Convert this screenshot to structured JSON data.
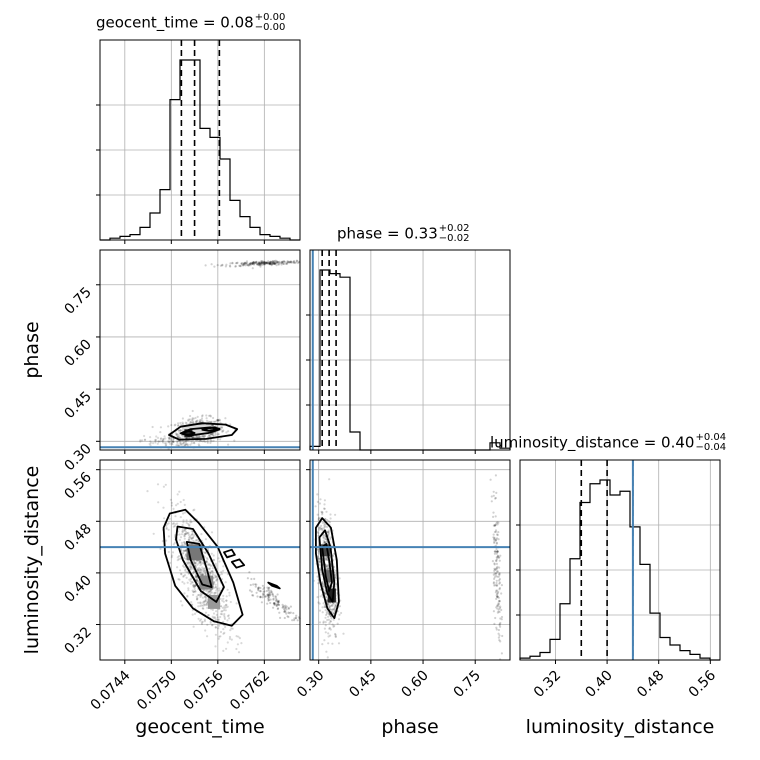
{
  "chart_data": {
    "type": "corner",
    "parameters": [
      "geocent_time",
      "phase",
      "luminosity_distance"
    ],
    "ranges": {
      "geocent_time": [
        0.07408,
        0.07666
      ],
      "phase": [
        0.275,
        0.85
      ],
      "luminosity_distance": [
        0.265,
        0.575
      ]
    },
    "ticks": {
      "geocent_time": [
        "0.0744",
        "0.0750",
        "0.0756",
        "0.0762"
      ],
      "phase": [
        "0.30",
        "0.45",
        "0.60",
        "0.75"
      ],
      "luminosity_distance": [
        "0.32",
        "0.40",
        "0.48",
        "0.56"
      ]
    },
    "titles": [
      {
        "label": "geocent_time = 0.08",
        "plus": "+0.00",
        "minus": "−0.00"
      },
      {
        "label": "phase = 0.33",
        "plus": "+0.02",
        "minus": "−0.02"
      },
      {
        "label": "luminosity_distance = 0.40",
        "plus": "+0.04",
        "minus": "−0.04"
      }
    ],
    "axis_labels": {
      "x": [
        "geocent_time",
        "phase",
        "luminosity_distance"
      ],
      "y": [
        "phase",
        "luminosity_distance"
      ]
    },
    "truths": {
      "phase": 0.283,
      "luminosity_distance": 0.44
    },
    "truth_color": "#4682b4",
    "quantiles": {
      "geocent_time": [
        0.07513,
        0.0753,
        0.07562
      ],
      "phase": [
        0.31,
        0.33,
        0.35
      ],
      "luminosity_distance": [
        0.36,
        0.4,
        0.44
      ]
    },
    "histograms": {
      "geocent_time": [
        0,
        1,
        2,
        3,
        7,
        15,
        28,
        78,
        100,
        100,
        62,
        57,
        45,
        22,
        13,
        7,
        3,
        2,
        1,
        0
      ],
      "phase": [
        2,
        100,
        98,
        96,
        10,
        0,
        0,
        0,
        0,
        0,
        0,
        0,
        0,
        0,
        0,
        0,
        0,
        0,
        4,
        1
      ],
      "luminosity_distance": [
        1,
        2,
        4,
        11,
        30,
        54,
        84,
        94,
        96,
        88,
        90,
        71,
        51,
        25,
        12,
        8,
        5,
        3,
        1,
        0
      ]
    },
    "grid": true
  }
}
